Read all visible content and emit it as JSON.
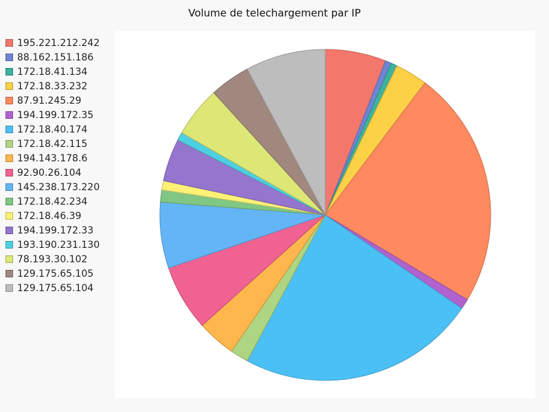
{
  "chart_data": {
    "type": "pie",
    "title": "Volume de telechargement par IP",
    "legend_position": "left",
    "slices": [
      {
        "label": "195.221.212.242",
        "value": 6.0,
        "color": "#f4776c"
      },
      {
        "label": "88.162.151.186",
        "value": 0.6,
        "color": "#6f84d4"
      },
      {
        "label": "172.18.41.134",
        "value": 0.6,
        "color": "#3cb39f"
      },
      {
        "label": "172.18.33.232",
        "value": 3.2,
        "color": "#fcd145"
      },
      {
        "label": "87.91.245.29",
        "value": 23.5,
        "color": "#ff8a5f"
      },
      {
        "label": "194.199.172.35",
        "value": 1.0,
        "color": "#b162d0"
      },
      {
        "label": "172.18.40.174",
        "value": 23.5,
        "color": "#4bc0f5"
      },
      {
        "label": "172.18.42.115",
        "value": 1.8,
        "color": "#aed581"
      },
      {
        "label": "194.143.178.6",
        "value": 3.8,
        "color": "#ffb74d"
      },
      {
        "label": "92.90.26.104",
        "value": 6.5,
        "color": "#f06292"
      },
      {
        "label": "145.238.173.220",
        "value": 6.5,
        "color": "#64b5f6"
      },
      {
        "label": "172.18.42.234",
        "value": 1.2,
        "color": "#81c784"
      },
      {
        "label": "172.18.46.39",
        "value": 0.9,
        "color": "#fff176"
      },
      {
        "label": "194.199.172.33",
        "value": 4.2,
        "color": "#9575cd"
      },
      {
        "label": "193.190.231.130",
        "value": 0.8,
        "color": "#4dd0e1"
      },
      {
        "label": "78.193.30.102",
        "value": 5.0,
        "color": "#dce775"
      },
      {
        "label": "129.175.65.105",
        "value": 4.0,
        "color": "#a1887f"
      },
      {
        "label": "129.175.65.104",
        "value": 7.9,
        "color": "#bdbdbd"
      }
    ]
  }
}
